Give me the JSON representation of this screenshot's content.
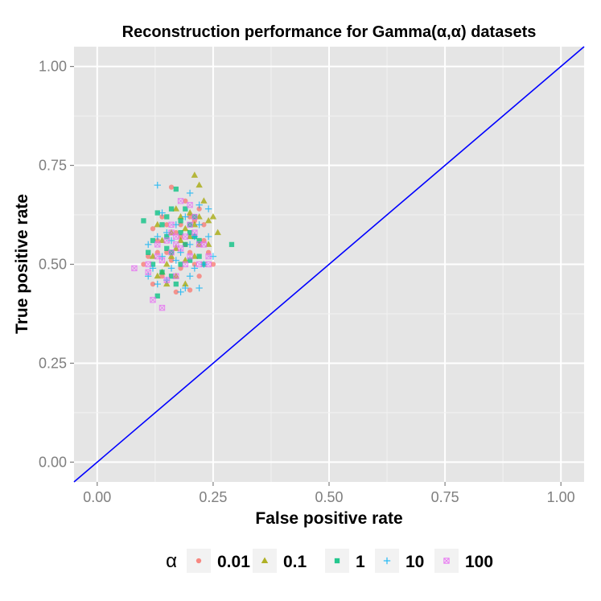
{
  "chart_data": {
    "type": "scatter",
    "title": "Reconstruction performance for Gamma(α,α) datasets",
    "xlabel": "False positive rate",
    "ylabel": "True positive rate",
    "xlim": [
      -0.05,
      1.05
    ],
    "ylim": [
      -0.05,
      1.05
    ],
    "x_ticks": [
      "0.00",
      "0.25",
      "0.50",
      "0.75",
      "1.00"
    ],
    "y_ticks": [
      "0.00",
      "0.25",
      "0.50",
      "0.75",
      "1.00"
    ],
    "x_tick_values": [
      0,
      0.25,
      0.5,
      0.75,
      1.0
    ],
    "y_tick_values": [
      0,
      0.25,
      0.5,
      0.75,
      1.0
    ],
    "grid": true,
    "legend": {
      "title": "α",
      "position": "bottom"
    },
    "reference_line": {
      "x": [
        -0.05,
        1.05
      ],
      "y": [
        -0.05,
        1.05
      ],
      "color": "#0000ff"
    },
    "series": [
      {
        "name": "0.01",
        "shape": "circle",
        "color": "#f8766d",
        "points": [
          [
            0.16,
            0.695
          ],
          [
            0.12,
            0.59
          ],
          [
            0.13,
            0.56
          ],
          [
            0.14,
            0.62
          ],
          [
            0.15,
            0.53
          ],
          [
            0.17,
            0.58
          ],
          [
            0.18,
            0.6
          ],
          [
            0.19,
            0.55
          ],
          [
            0.2,
            0.62
          ],
          [
            0.21,
            0.5
          ],
          [
            0.22,
            0.47
          ],
          [
            0.23,
            0.56
          ],
          [
            0.17,
            0.43
          ],
          [
            0.2,
            0.435
          ],
          [
            0.25,
            0.5
          ],
          [
            0.1,
            0.5
          ],
          [
            0.11,
            0.52
          ],
          [
            0.19,
            0.66
          ],
          [
            0.22,
            0.64
          ],
          [
            0.14,
            0.47
          ],
          [
            0.16,
            0.51
          ],
          [
            0.18,
            0.57
          ],
          [
            0.21,
            0.61
          ],
          [
            0.13,
            0.53
          ],
          [
            0.24,
            0.53
          ],
          [
            0.15,
            0.6
          ],
          [
            0.2,
            0.53
          ],
          [
            0.12,
            0.45
          ],
          [
            0.18,
            0.49
          ],
          [
            0.23,
            0.6
          ]
        ]
      },
      {
        "name": "0.1",
        "shape": "triangle",
        "color": "#a3a500",
        "points": [
          [
            0.21,
            0.725
          ],
          [
            0.22,
            0.7
          ],
          [
            0.25,
            0.62
          ],
          [
            0.26,
            0.58
          ],
          [
            0.24,
            0.55
          ],
          [
            0.2,
            0.63
          ],
          [
            0.19,
            0.59
          ],
          [
            0.18,
            0.56
          ],
          [
            0.17,
            0.54
          ],
          [
            0.16,
            0.52
          ],
          [
            0.15,
            0.5
          ],
          [
            0.14,
            0.48
          ],
          [
            0.13,
            0.47
          ],
          [
            0.17,
            0.47
          ],
          [
            0.19,
            0.45
          ],
          [
            0.22,
            0.62
          ],
          [
            0.23,
            0.66
          ],
          [
            0.21,
            0.6
          ],
          [
            0.2,
            0.57
          ],
          [
            0.18,
            0.62
          ],
          [
            0.16,
            0.58
          ],
          [
            0.14,
            0.56
          ],
          [
            0.12,
            0.52
          ],
          [
            0.13,
            0.6
          ],
          [
            0.22,
            0.55
          ],
          [
            0.24,
            0.61
          ],
          [
            0.17,
            0.64
          ],
          [
            0.15,
            0.45
          ],
          [
            0.19,
            0.51
          ],
          [
            0.21,
            0.52
          ]
        ]
      },
      {
        "name": "1",
        "shape": "square",
        "color": "#00bf7d",
        "points": [
          [
            0.17,
            0.69
          ],
          [
            0.1,
            0.61
          ],
          [
            0.13,
            0.63
          ],
          [
            0.14,
            0.6
          ],
          [
            0.15,
            0.57
          ],
          [
            0.16,
            0.64
          ],
          [
            0.18,
            0.61
          ],
          [
            0.19,
            0.55
          ],
          [
            0.2,
            0.58
          ],
          [
            0.21,
            0.62
          ],
          [
            0.22,
            0.56
          ],
          [
            0.29,
            0.55
          ],
          [
            0.11,
            0.53
          ],
          [
            0.12,
            0.5
          ],
          [
            0.14,
            0.48
          ],
          [
            0.16,
            0.53
          ],
          [
            0.18,
            0.5
          ],
          [
            0.2,
            0.51
          ],
          [
            0.22,
            0.52
          ],
          [
            0.13,
            0.42
          ],
          [
            0.17,
            0.45
          ],
          [
            0.19,
            0.64
          ],
          [
            0.15,
            0.62
          ],
          [
            0.21,
            0.57
          ],
          [
            0.23,
            0.5
          ],
          [
            0.15,
            0.54
          ],
          [
            0.18,
            0.58
          ],
          [
            0.2,
            0.6
          ],
          [
            0.16,
            0.47
          ],
          [
            0.12,
            0.56
          ]
        ]
      },
      {
        "name": "10",
        "shape": "plus",
        "color": "#00b0f6",
        "points": [
          [
            0.13,
            0.7
          ],
          [
            0.2,
            0.68
          ],
          [
            0.22,
            0.65
          ],
          [
            0.24,
            0.64
          ],
          [
            0.11,
            0.55
          ],
          [
            0.12,
            0.49
          ],
          [
            0.13,
            0.45
          ],
          [
            0.15,
            0.46
          ],
          [
            0.18,
            0.43
          ],
          [
            0.19,
            0.44
          ],
          [
            0.22,
            0.44
          ],
          [
            0.23,
            0.5
          ],
          [
            0.25,
            0.52
          ],
          [
            0.16,
            0.56
          ],
          [
            0.17,
            0.6
          ],
          [
            0.18,
            0.53
          ],
          [
            0.2,
            0.55
          ],
          [
            0.21,
            0.57
          ],
          [
            0.14,
            0.52
          ],
          [
            0.15,
            0.58
          ],
          [
            0.11,
            0.47
          ],
          [
            0.14,
            0.63
          ],
          [
            0.19,
            0.62
          ],
          [
            0.21,
            0.49
          ],
          [
            0.24,
            0.57
          ],
          [
            0.16,
            0.49
          ],
          [
            0.13,
            0.57
          ],
          [
            0.17,
            0.51
          ],
          [
            0.2,
            0.47
          ],
          [
            0.22,
            0.6
          ]
        ]
      },
      {
        "name": "100",
        "shape": "square-cross",
        "color": "#e76bf3",
        "points": [
          [
            0.08,
            0.49
          ],
          [
            0.11,
            0.5
          ],
          [
            0.11,
            0.48
          ],
          [
            0.12,
            0.41
          ],
          [
            0.14,
            0.39
          ],
          [
            0.13,
            0.55
          ],
          [
            0.15,
            0.56
          ],
          [
            0.16,
            0.58
          ],
          [
            0.17,
            0.55
          ],
          [
            0.18,
            0.66
          ],
          [
            0.2,
            0.65
          ],
          [
            0.2,
            0.6
          ],
          [
            0.19,
            0.57
          ],
          [
            0.21,
            0.58
          ],
          [
            0.22,
            0.55
          ],
          [
            0.23,
            0.55
          ],
          [
            0.24,
            0.52
          ],
          [
            0.24,
            0.5
          ],
          [
            0.16,
            0.53
          ],
          [
            0.14,
            0.51
          ],
          [
            0.15,
            0.46
          ],
          [
            0.17,
            0.47
          ],
          [
            0.19,
            0.5
          ],
          [
            0.13,
            0.52
          ],
          [
            0.22,
            0.5
          ],
          [
            0.18,
            0.54
          ],
          [
            0.16,
            0.6
          ],
          [
            0.21,
            0.62
          ],
          [
            0.2,
            0.52
          ],
          [
            0.17,
            0.57
          ]
        ]
      }
    ]
  }
}
